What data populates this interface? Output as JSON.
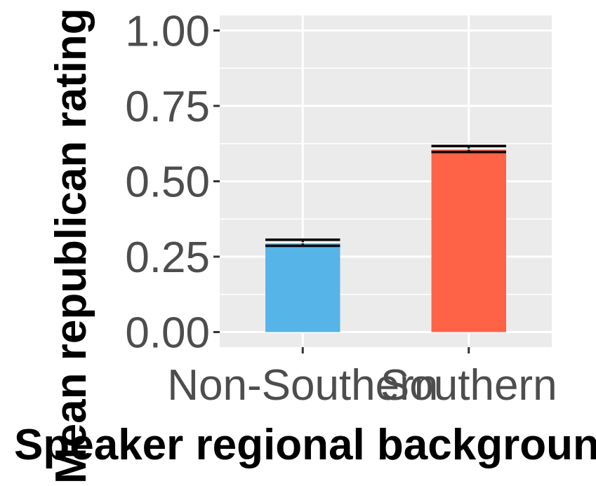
{
  "chart_data": {
    "type": "bar",
    "title": "",
    "xlabel": "Speaker regional background",
    "ylabel": "Mean republican rating",
    "categories": [
      "Non-Southern",
      "Southern"
    ],
    "values": [
      0.296,
      0.607
    ],
    "error": [
      0.01,
      0.01
    ],
    "bar_colors": [
      "#56B4E9",
      "#FF6347"
    ],
    "ylim": [
      -0.05,
      1.05
    ],
    "yticks": [
      0.0,
      0.25,
      0.5,
      0.75,
      1.0
    ],
    "ytick_labels": [
      "0.00",
      "0.25",
      "0.50",
      "0.75",
      "1.00"
    ],
    "grid": true,
    "panel_background": "#EBEBEB",
    "legend": "none"
  }
}
